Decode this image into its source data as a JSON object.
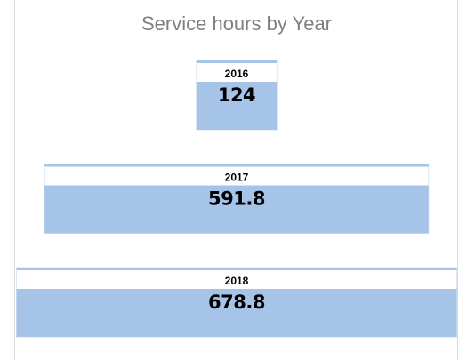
{
  "chart_data": {
    "type": "funnel",
    "title": "Service hours by Year",
    "categories": [
      "2016",
      "2017",
      "2018"
    ],
    "values": [
      124,
      591.8,
      678.8
    ],
    "color": "#a6c3e8"
  }
}
